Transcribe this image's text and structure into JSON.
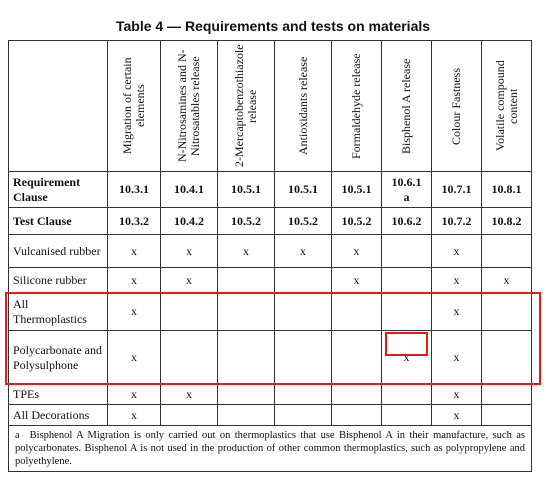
{
  "title": "Table 4 — Requirements and tests on materials",
  "table": {
    "headers": [
      "Migration of certain elements",
      "N-Nitrosamines and N-Nitrosatables release",
      "2-Mercaptobenzothiazole release",
      "Antioxidants release",
      "Formaldehyde release",
      "Bisphenol A release",
      "Colour Fastness",
      "Volatile compound content"
    ],
    "rows": [
      {
        "label": "Requirement Clause",
        "bold": true,
        "cells": [
          "10.3.1",
          "10.4.1",
          "10.5.1",
          "10.5.1",
          "10.5.1",
          "10.6.1",
          "10.7.1",
          "10.8.1"
        ],
        "notes": [
          null,
          null,
          null,
          null,
          null,
          "a",
          null,
          null
        ]
      },
      {
        "label": "Test Clause",
        "bold": true,
        "cells": [
          "10.3.2",
          "10.4.2",
          "10.5.2",
          "10.5.2",
          "10.5.2",
          "10.6.2",
          "10.7.2",
          "10.8.2"
        ]
      },
      {
        "label": "Vulcanised rubber",
        "cells": [
          "x",
          "x",
          "x",
          "x",
          "x",
          null,
          "x",
          null
        ]
      },
      {
        "label": "Silicone rubber",
        "cells": [
          "x",
          "x",
          null,
          null,
          "x",
          null,
          "x",
          "x"
        ]
      },
      {
        "label": "All Thermoplastics",
        "cells": [
          "x",
          null,
          null,
          null,
          null,
          null,
          "x",
          null
        ]
      },
      {
        "label": "Polycarbonate and Polysulphone",
        "cells": [
          "x",
          null,
          null,
          null,
          null,
          "x",
          "x",
          null
        ]
      },
      {
        "label": "TPEs",
        "cells": [
          "x",
          "x",
          null,
          null,
          null,
          null,
          "x",
          null
        ]
      },
      {
        "label": "All Decorations",
        "cells": [
          "x",
          null,
          null,
          null,
          null,
          null,
          "x",
          null
        ]
      }
    ]
  },
  "footnote": {
    "mark": "a",
    "text": "Bisphenol A Migration is only carried out on thermoplastics that use Bisphenol A in their manufacture, such as polycarbonates. Bisphenol A is not used in the production of other common thermoplastics, such as polypropylene and polyethylene."
  }
}
